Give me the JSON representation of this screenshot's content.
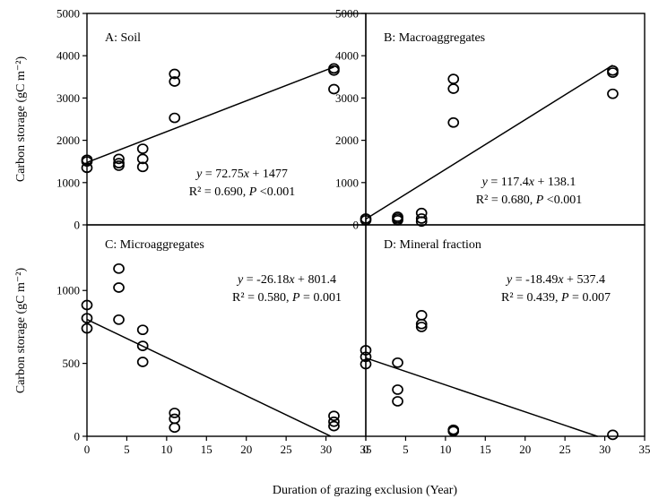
{
  "chart_data": {
    "type": "scatter",
    "layout": "2x2 panels sharing x axis",
    "xlabel": "Duration of grazing exclusion (Year)",
    "ylabel": "Carbon storage (gC m⁻²)",
    "xlim": [
      0,
      35
    ],
    "xticks": [
      0,
      5,
      10,
      15,
      20,
      25,
      30,
      35
    ],
    "grid": false,
    "panels": [
      {
        "id": "A",
        "title": "A: Soil",
        "ylim": [
          0,
          5000
        ],
        "yticks": [
          0,
          1000,
          2000,
          3000,
          4000,
          5000
        ],
        "points": [
          [
            0,
            1540
          ],
          [
            0,
            1500
          ],
          [
            0,
            1350
          ],
          [
            4,
            1560
          ],
          [
            4,
            1460
          ],
          [
            4,
            1400
          ],
          [
            7,
            1800
          ],
          [
            7,
            1560
          ],
          [
            7,
            1370
          ],
          [
            11,
            3570
          ],
          [
            11,
            3390
          ],
          [
            11,
            2530
          ],
          [
            31,
            3700
          ],
          [
            31,
            3650
          ],
          [
            31,
            3210
          ]
        ],
        "fit": {
          "slope": 72.75,
          "intercept": 1477,
          "x_range": [
            0,
            31
          ]
        },
        "equation": {
          "y": "y",
          "eq": " = 72.75",
          "x": "x",
          "rest": " + 1477"
        },
        "stats": {
          "r2": "R² = 0.690, ",
          "p": "P",
          "rest": " <0.001"
        }
      },
      {
        "id": "B",
        "title": "B: Macroaggregates",
        "ylim": [
          0,
          5000
        ],
        "yticks": [
          0,
          1000,
          2000,
          3000,
          4000,
          5000
        ],
        "points": [
          [
            0,
            150
          ],
          [
            0,
            110
          ],
          [
            4,
            190
          ],
          [
            4,
            150
          ],
          [
            4,
            110
          ],
          [
            7,
            280
          ],
          [
            7,
            150
          ],
          [
            7,
            80
          ],
          [
            11,
            3450
          ],
          [
            11,
            3220
          ],
          [
            11,
            2420
          ],
          [
            31,
            3650
          ],
          [
            31,
            3600
          ],
          [
            31,
            3100
          ]
        ],
        "fit": {
          "slope": 117.4,
          "intercept": 138.1,
          "x_range": [
            0,
            31
          ]
        },
        "equation": {
          "y": "y",
          "eq": " = 117.4",
          "x": "x",
          "rest": " + 138.1"
        },
        "stats": {
          "r2": "R² = 0.680, ",
          "p": "P",
          "rest": " <0.001"
        }
      },
      {
        "id": "C",
        "title": "C: Microaggregates",
        "ylim": [
          0,
          1450
        ],
        "yticks": [
          0,
          500,
          1000
        ],
        "points": [
          [
            0,
            900
          ],
          [
            0,
            810
          ],
          [
            0,
            740
          ],
          [
            4,
            1150
          ],
          [
            4,
            1020
          ],
          [
            4,
            800
          ],
          [
            7,
            730
          ],
          [
            7,
            620
          ],
          [
            7,
            510
          ],
          [
            11,
            160
          ],
          [
            11,
            120
          ],
          [
            11,
            60
          ],
          [
            31,
            140
          ],
          [
            31,
            100
          ],
          [
            31,
            70
          ]
        ],
        "fit": {
          "slope": -26.18,
          "intercept": 801.4,
          "x_range": [
            0,
            30.6
          ]
        },
        "equation": {
          "y": "y",
          "eq": " = -26.18",
          "x": "x",
          "rest": " + 801.4"
        },
        "stats": {
          "r2": "R² = 0.580, ",
          "p": "P",
          "rest": " = 0.001"
        }
      },
      {
        "id": "D",
        "title": "D: Mineral fraction",
        "ylim": [
          0,
          1450
        ],
        "yticks": [],
        "points": [
          [
            0,
            590
          ],
          [
            0,
            545
          ],
          [
            0,
            495
          ],
          [
            4,
            505
          ],
          [
            4,
            320
          ],
          [
            4,
            240
          ],
          [
            7,
            830
          ],
          [
            7,
            770
          ],
          [
            7,
            750
          ],
          [
            11,
            45
          ],
          [
            11,
            35
          ],
          [
            31,
            10
          ]
        ],
        "fit": {
          "slope": -18.49,
          "intercept": 537.4,
          "x_range": [
            0,
            29.1
          ]
        },
        "equation": {
          "y": "y",
          "eq": " = -18.49",
          "x": "x",
          "rest": " + 537.4"
        },
        "stats": {
          "r2": "R² = 0.439, ",
          "p": "P",
          "rest": " = 0.007"
        }
      }
    ]
  }
}
